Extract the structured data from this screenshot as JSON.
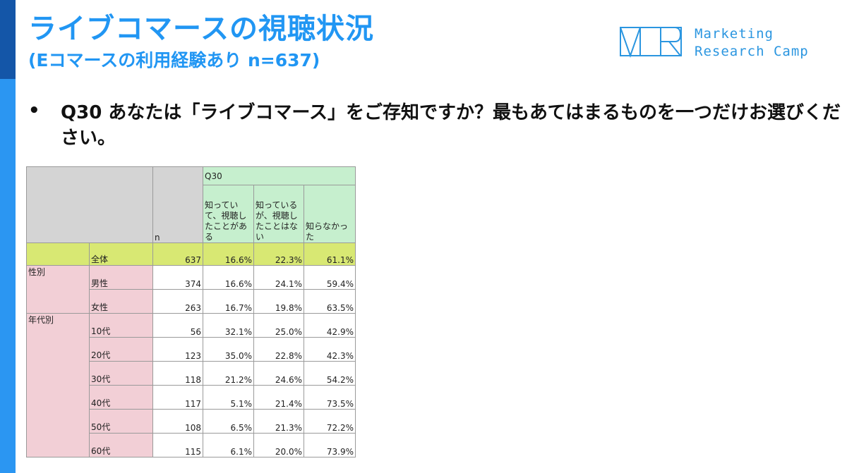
{
  "header": {
    "title": "ライブコマースの視聴状況",
    "subtitle": "(Eコマースの利用経験あり n=637)"
  },
  "logo": {
    "line1": "Marketing",
    "line2": "Research Camp",
    "color": "#2b96e0"
  },
  "question": {
    "bullet": "•",
    "text": "Q30 あなたは「ライブコマース」をご存知ですか？最もあてはまるものを一つだけお選びください。"
  },
  "table": {
    "question_code": "Q30",
    "n_label": "n",
    "options": [
      "知っていて、視聴したことがある",
      "知っているが、視聴したことはない",
      "知らなかった"
    ],
    "total": {
      "label": "全体",
      "n": "637",
      "values": [
        "16.6%",
        "22.3%",
        "61.1%"
      ]
    },
    "groups": [
      {
        "name": "性別",
        "rows": [
          {
            "label": "男性",
            "n": "374",
            "values": [
              "16.6%",
              "24.1%",
              "59.4%"
            ]
          },
          {
            "label": "女性",
            "n": "263",
            "values": [
              "16.7%",
              "19.8%",
              "63.5%"
            ]
          }
        ]
      },
      {
        "name": "年代別",
        "rows": [
          {
            "label": "10代",
            "n": "56",
            "values": [
              "32.1%",
              "25.0%",
              "42.9%"
            ]
          },
          {
            "label": "20代",
            "n": "123",
            "values": [
              "35.0%",
              "22.8%",
              "42.3%"
            ]
          },
          {
            "label": "30代",
            "n": "118",
            "values": [
              "21.2%",
              "24.6%",
              "54.2%"
            ]
          },
          {
            "label": "40代",
            "n": "117",
            "values": [
              "5.1%",
              "21.4%",
              "73.5%"
            ]
          },
          {
            "label": "50代",
            "n": "108",
            "values": [
              "6.5%",
              "21.3%",
              "72.2%"
            ]
          },
          {
            "label": "60代",
            "n": "115",
            "values": [
              "6.1%",
              "20.0%",
              "73.9%"
            ]
          }
        ]
      }
    ]
  },
  "colors": {
    "accent_blue": "#2196f3",
    "total_row": "#d8e873",
    "category_pink": "#f2cfd6",
    "header_green": "#c6efce",
    "header_gray": "#d4d4d4"
  }
}
